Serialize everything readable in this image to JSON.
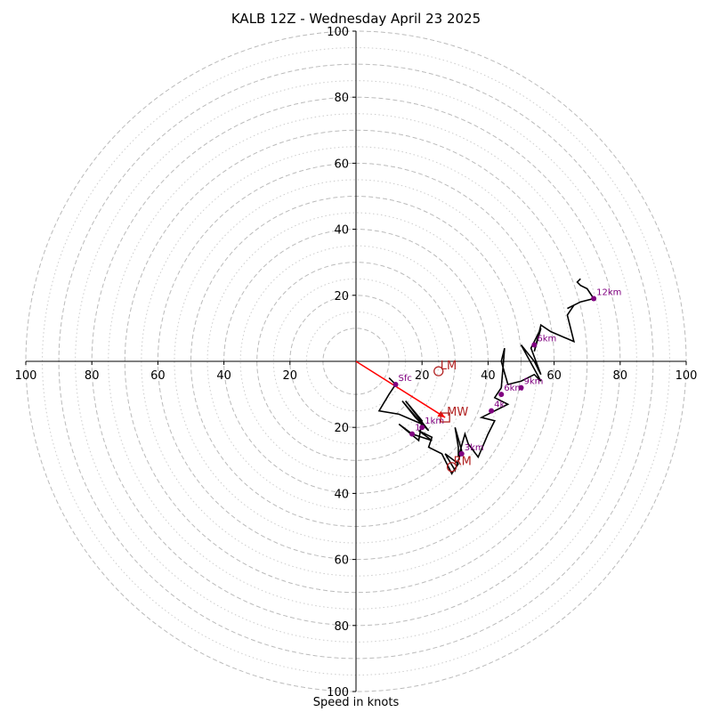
{
  "chart_data": {
    "type": "hodograph",
    "title": "KALB 12Z - Wednesday April 23 2025",
    "xlabel": "Speed in knots",
    "range": [
      -100,
      100
    ],
    "tick_labels": [
      "100",
      "80",
      "60",
      "40",
      "20",
      "20",
      "40",
      "60",
      "80",
      "100"
    ],
    "tick_values": [
      -100,
      -80,
      -60,
      -40,
      -20,
      20,
      40,
      60,
      80,
      100
    ],
    "rings_dashed": [
      10,
      20,
      30,
      40,
      50,
      60,
      70,
      80,
      90,
      100
    ],
    "rings_dotted": [
      15,
      25,
      35,
      45,
      55,
      65,
      75,
      85,
      95
    ],
    "colors": {
      "trace": "#000000",
      "height_marker": "#800080",
      "storm_motion": "#b22222",
      "mean_wind_vector": "#ff0000",
      "ring": "#bbbbbb"
    },
    "trace": [
      [
        10,
        -5
      ],
      [
        12,
        -7
      ],
      [
        10,
        -10
      ],
      [
        7,
        -15
      ],
      [
        13,
        -16
      ],
      [
        20,
        -19
      ],
      [
        14,
        -12
      ],
      [
        18,
        -17
      ],
      [
        22,
        -21
      ],
      [
        15,
        -12
      ],
      [
        20,
        -18
      ],
      [
        19,
        -24
      ],
      [
        13,
        -19
      ],
      [
        17,
        -22
      ],
      [
        23,
        -24
      ],
      [
        19,
        -21
      ],
      [
        23,
        -23
      ],
      [
        22,
        -26
      ],
      [
        26,
        -28
      ],
      [
        29,
        -34
      ],
      [
        31,
        -31
      ],
      [
        27,
        -28
      ],
      [
        30,
        -33
      ],
      [
        32,
        -27
      ],
      [
        30,
        -20
      ],
      [
        31,
        -26
      ],
      [
        31,
        -29
      ],
      [
        33,
        -22
      ],
      [
        34,
        -25
      ],
      [
        37,
        -29
      ],
      [
        40,
        -22
      ],
      [
        42,
        -18
      ],
      [
        38,
        -17
      ],
      [
        46,
        -13
      ],
      [
        42,
        -11
      ],
      [
        44,
        -8
      ],
      [
        45,
        4
      ],
      [
        44,
        0
      ],
      [
        46,
        -7
      ],
      [
        50,
        -6
      ],
      [
        52,
        -5
      ],
      [
        54,
        -4
      ],
      [
        55,
        -5
      ],
      [
        56,
        -6
      ],
      [
        50,
        5
      ],
      [
        54,
        0
      ],
      [
        56,
        -4
      ],
      [
        53,
        4
      ],
      [
        54,
        6
      ],
      [
        56,
        10
      ],
      [
        54,
        3
      ],
      [
        56,
        11
      ],
      [
        59,
        9
      ],
      [
        66,
        6
      ],
      [
        64,
        14
      ],
      [
        66,
        17
      ],
      [
        64,
        16
      ],
      [
        68,
        18
      ],
      [
        72,
        19
      ],
      [
        70,
        22
      ],
      [
        68,
        23
      ],
      [
        67,
        24
      ],
      [
        68,
        25
      ]
    ],
    "heights": [
      {
        "label": "Sfc",
        "u": 12,
        "v": -7
      },
      {
        "label": "1km",
        "u": 20,
        "v": -20
      },
      {
        "label": "3km",
        "u": 32,
        "v": -28
      },
      {
        "label": "6km",
        "u": 44,
        "v": -10
      },
      {
        "label": "9km",
        "u": 50,
        "v": -8
      },
      {
        "label": "12km",
        "u": 72,
        "v": 19
      }
    ],
    "height_partials": [
      {
        "label": "1",
        "u": 17,
        "v": -22
      },
      {
        "label": "4k",
        "u": 41,
        "v": -15
      },
      {
        "label": "6km",
        "u": 54,
        "v": 5
      }
    ],
    "storm_motion": [
      {
        "label": "LM",
        "u": 25,
        "v": -3,
        "marker": "circle"
      },
      {
        "label": "MW",
        "u": 27,
        "v": -17,
        "marker": "square"
      },
      {
        "label": "RM",
        "u": 29,
        "v": -32,
        "marker": "circle"
      }
    ],
    "mean_wind_vector": {
      "from": [
        0,
        0
      ],
      "to": [
        27,
        -17
      ]
    }
  }
}
